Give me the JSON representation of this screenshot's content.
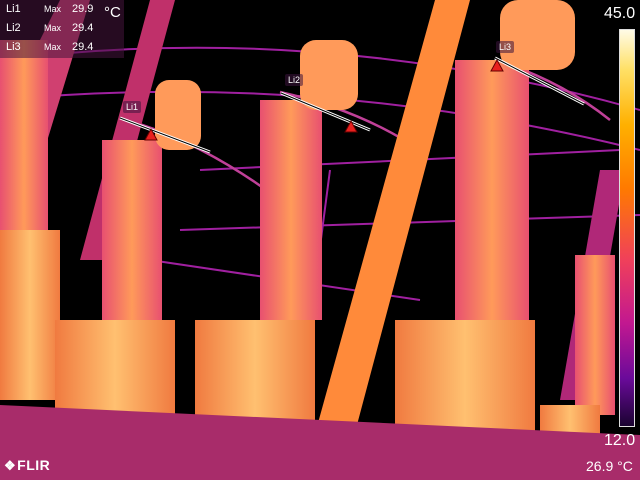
{
  "measurements": [
    {
      "name": "Li1",
      "max_label": "Max",
      "value": "29.9"
    },
    {
      "name": "Li2",
      "max_label": "Max",
      "value": "29.4"
    },
    {
      "name": "Li3",
      "max_label": "Max",
      "value": "29.4"
    }
  ],
  "unit": "°C",
  "scale": {
    "max": "45.0",
    "min": "12.0"
  },
  "line_labels": [
    "Li1",
    "Li2",
    "Li3"
  ],
  "brand": {
    "logo_text": "FLIR",
    "logo_mark": "❖"
  },
  "corner_temp": "26.9 °C",
  "colors": {
    "hot": "#ffb000",
    "warm": "#f0405a",
    "cool": "#6a0a9a",
    "bg": "#000000",
    "marker": "#e8201e"
  }
}
